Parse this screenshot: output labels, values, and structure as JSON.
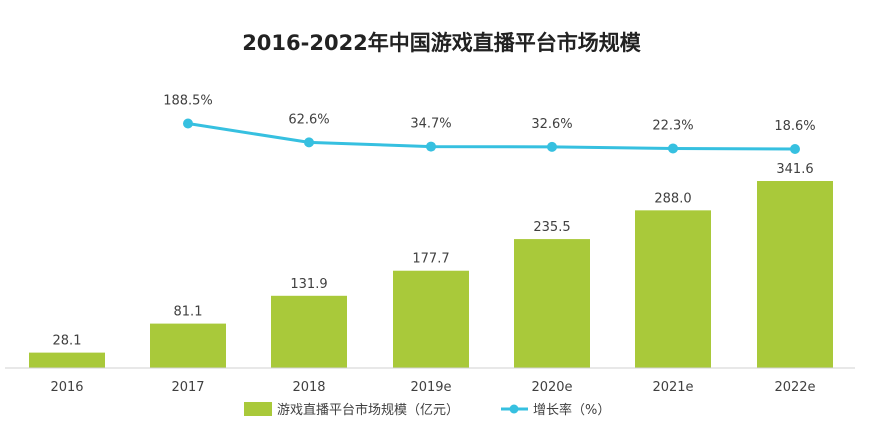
{
  "chart_data": {
    "type": "bar",
    "title": "2016-2022年中国游戏直播平台市场规模",
    "categories": [
      "2016",
      "2017",
      "2018",
      "2019e",
      "2020e",
      "2021e",
      "2022e"
    ],
    "series": [
      {
        "name": "游戏直播平台市场规模（亿元）",
        "type": "bar",
        "color": "#a9c93a",
        "values": [
          28.1,
          81.1,
          131.9,
          177.7,
          235.5,
          288.0,
          341.6
        ],
        "labels": [
          "28.1",
          "81.1",
          "131.9",
          "177.7",
          "235.5",
          "288.0",
          "341.6"
        ]
      },
      {
        "name": "增长率（%）",
        "type": "line",
        "color": "#36c0e0",
        "values": [
          null,
          188.5,
          62.6,
          34.7,
          32.6,
          22.3,
          18.6
        ],
        "labels": [
          "",
          "188.5%",
          "62.6%",
          "34.7%",
          "32.6%",
          "22.3%",
          "18.6%"
        ]
      }
    ],
    "legend_position": "bottom",
    "grid": false
  }
}
